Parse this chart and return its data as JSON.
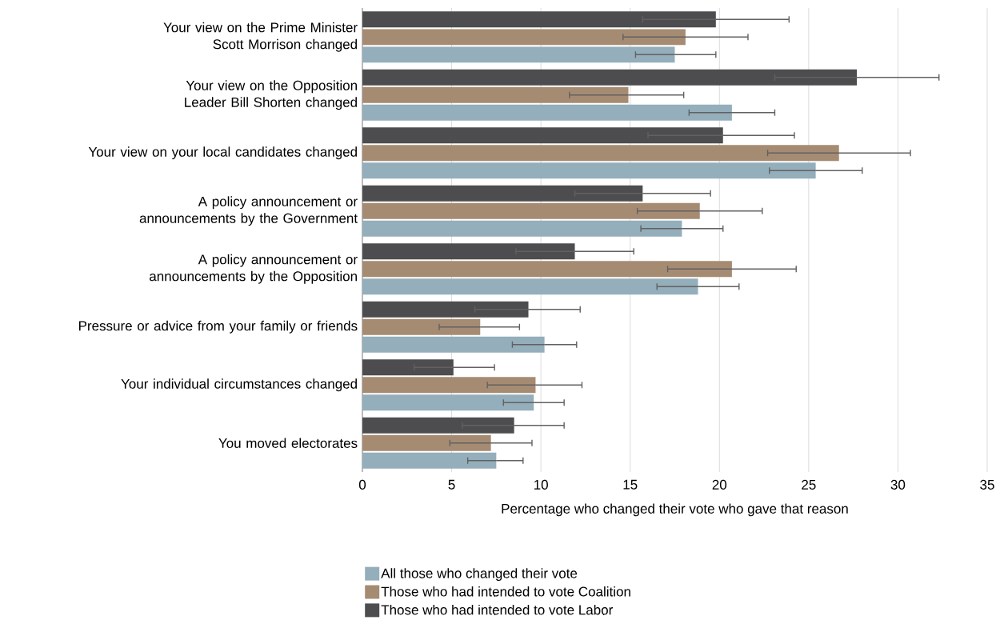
{
  "chart_data": {
    "type": "bar",
    "orientation": "horizontal",
    "xlabel": "Percentage who changed their vote who gave that reason",
    "categories": [
      "Your view on the Prime Minister Scott Morrison changed",
      "Your view on the Opposition Leader Bill Shorten changed",
      "Your view on your local candidates changed",
      "A policy announcement or announcements by the Government",
      "A policy announcement or announcements by the Opposition",
      "Pressure or advice from your family or friends",
      "Your individual circumstances changed",
      "You moved electorates"
    ],
    "series": [
      {
        "name": "All those who changed their vote",
        "color": "#94aebb",
        "values": [
          17.5,
          20.7,
          25.4,
          17.9,
          18.8,
          10.2,
          9.6,
          7.5
        ],
        "errors": [
          [
            15.3,
            19.8
          ],
          [
            18.3,
            23.1
          ],
          [
            22.8,
            28.0
          ],
          [
            15.6,
            20.2
          ],
          [
            16.5,
            21.1
          ],
          [
            8.4,
            12.0
          ],
          [
            7.9,
            11.3
          ],
          [
            5.9,
            9.0
          ]
        ]
      },
      {
        "name": "Those who had intended to vote Coalition",
        "color": "#a68b73",
        "values": [
          18.1,
          14.9,
          26.7,
          18.9,
          20.7,
          6.6,
          9.7,
          7.2
        ],
        "errors": [
          [
            14.6,
            21.6
          ],
          [
            11.6,
            18.0
          ],
          [
            22.7,
            30.7
          ],
          [
            15.4,
            22.4
          ],
          [
            17.1,
            24.3
          ],
          [
            4.3,
            8.8
          ],
          [
            7.0,
            12.3
          ],
          [
            4.9,
            9.5
          ]
        ]
      },
      {
        "name": "Those who had intended to vote Labor",
        "color": "#4d4d4f",
        "values": [
          19.8,
          27.7,
          20.2,
          15.7,
          11.9,
          9.3,
          5.1,
          8.5
        ],
        "errors": [
          [
            15.7,
            23.9
          ],
          [
            23.1,
            32.3
          ],
          [
            16.0,
            24.2
          ],
          [
            11.9,
            19.5
          ],
          [
            8.6,
            15.2
          ],
          [
            6.3,
            12.2
          ],
          [
            2.9,
            7.4
          ],
          [
            5.6,
            11.3
          ]
        ]
      }
    ],
    "xlim": [
      0,
      35
    ],
    "xticks": [
      0,
      5,
      10,
      15,
      20,
      25,
      30,
      35
    ],
    "grid": "x",
    "legend": "bottom"
  }
}
